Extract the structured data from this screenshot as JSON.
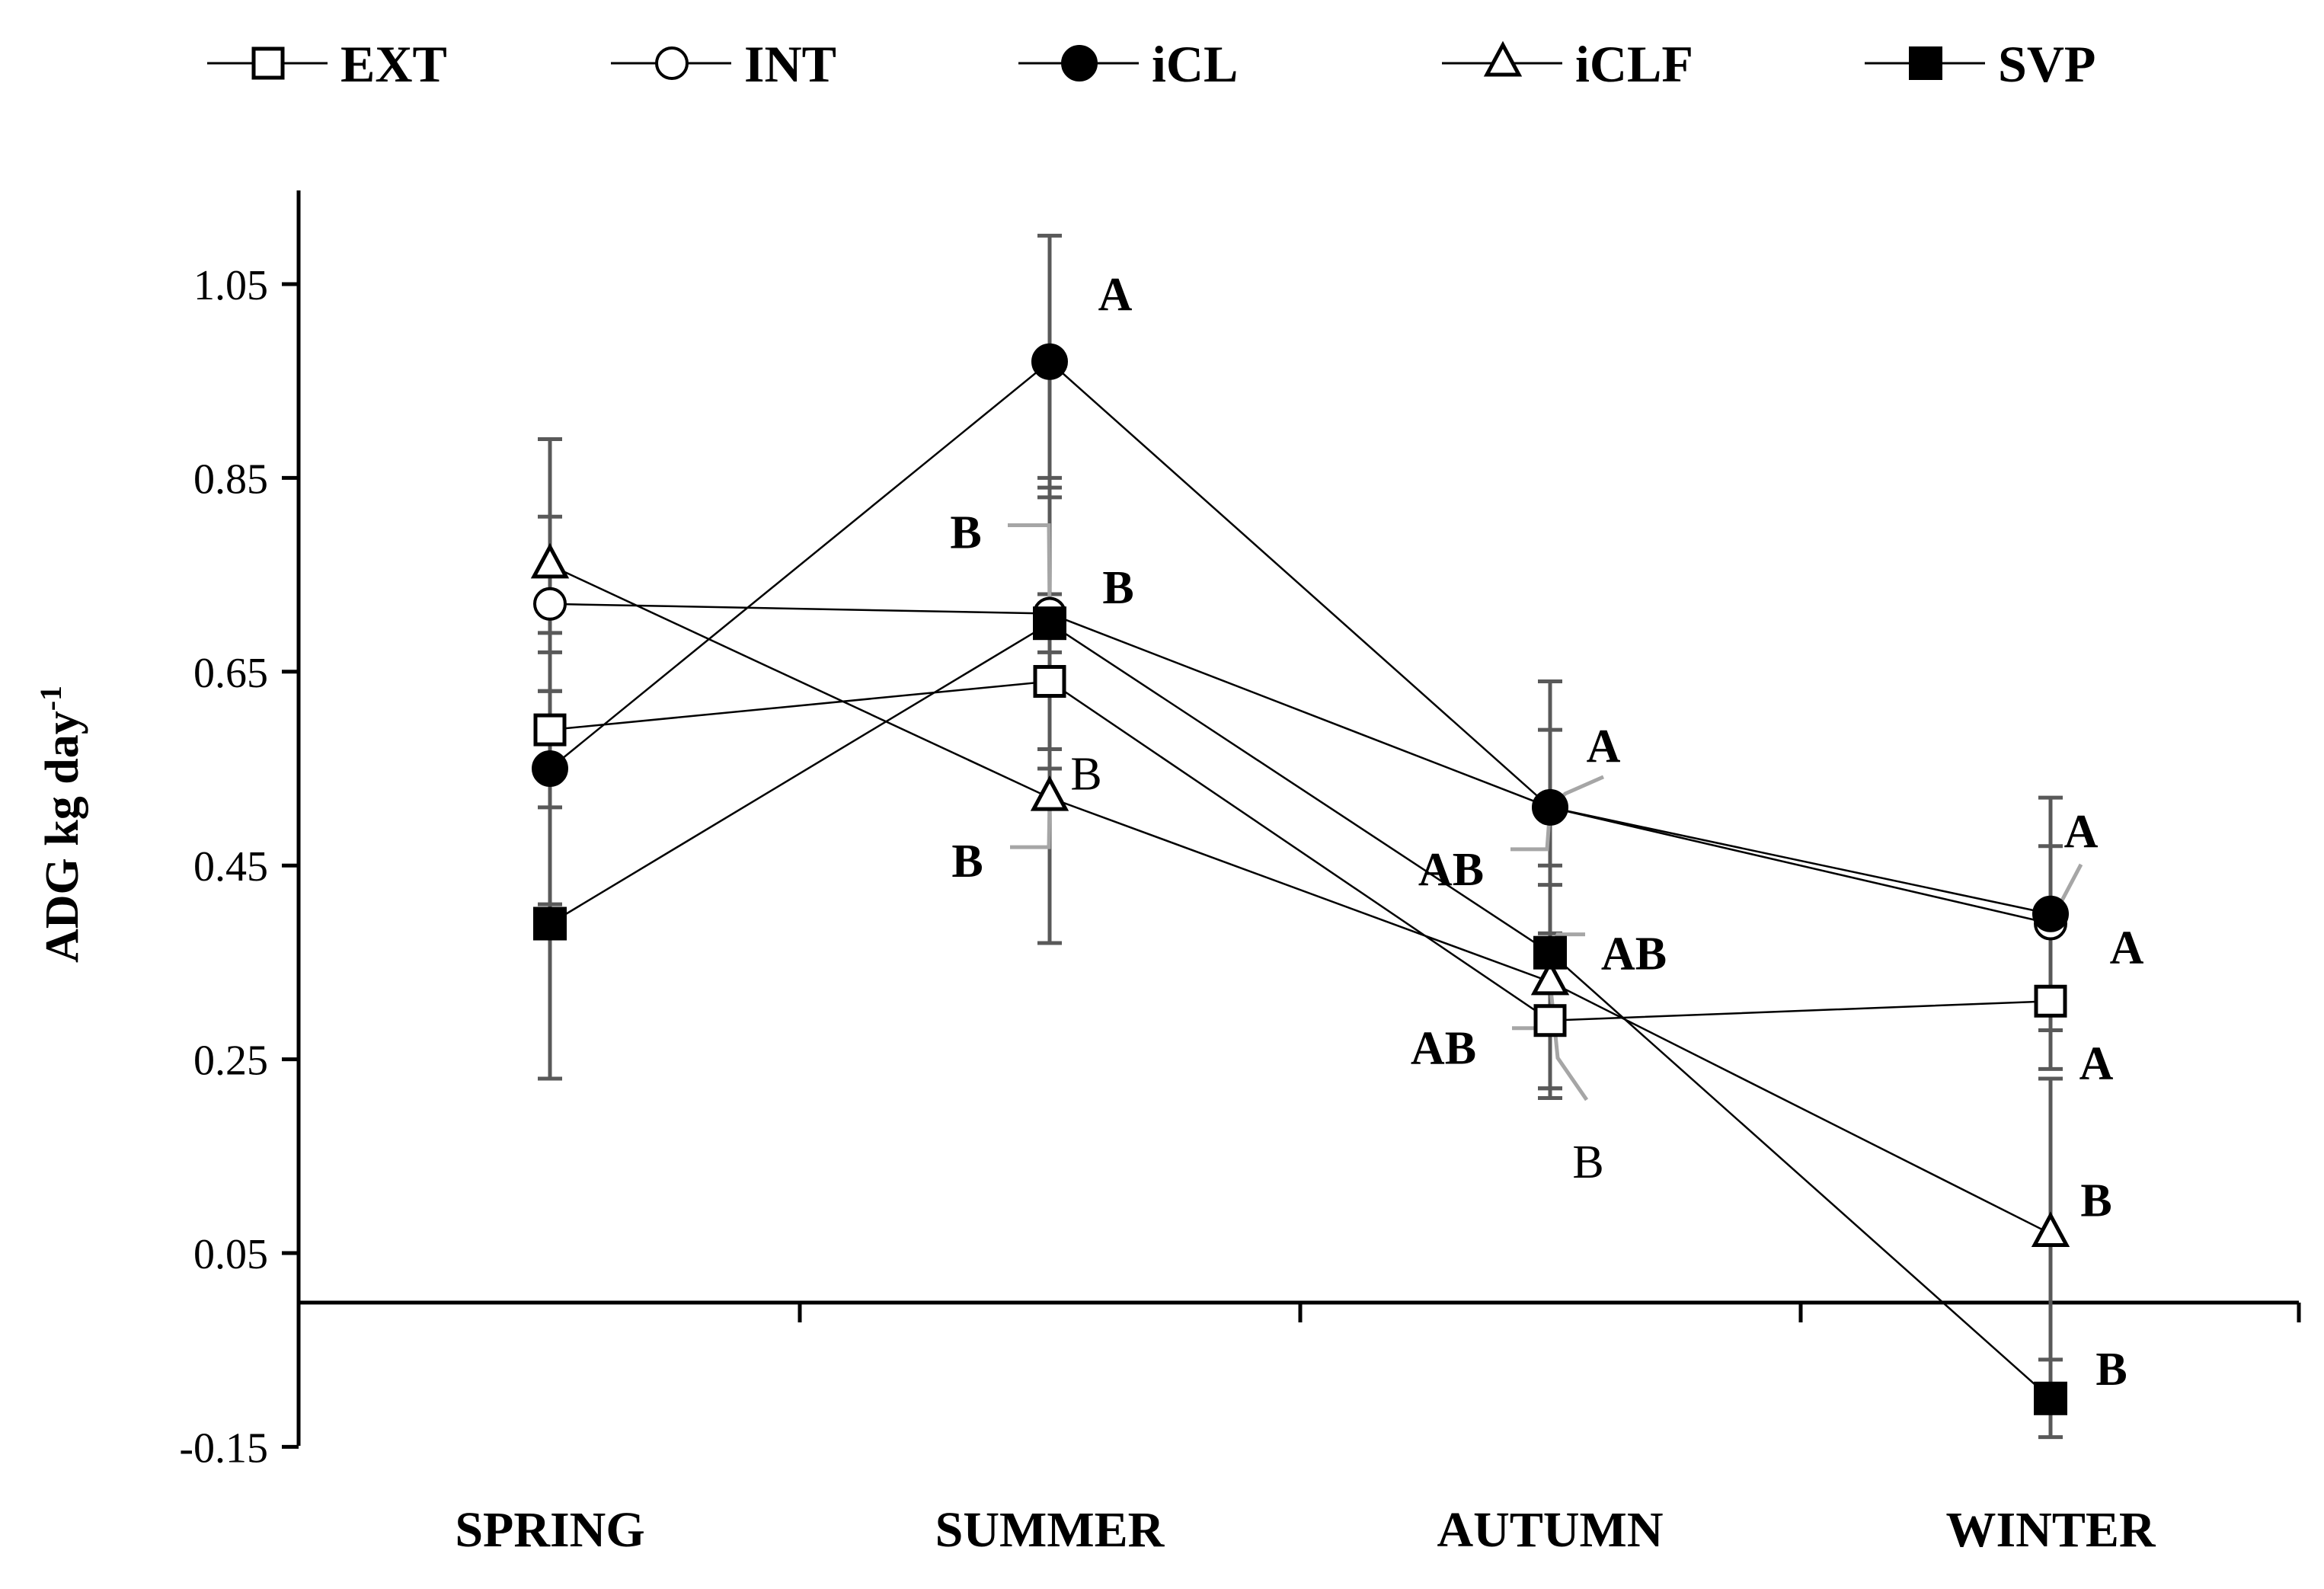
{
  "chart_data": {
    "type": "line",
    "title": "",
    "xlabel": "",
    "ylabel": "ADG kg day",
    "ylabel_superscript": "-1",
    "categories": [
      "SPRING",
      "SUMMER",
      "AUTUMN",
      "WINTER"
    ],
    "ylim": [
      -0.15,
      1.15
    ],
    "yticks": [
      -0.15,
      0.05,
      0.25,
      0.45,
      0.65,
      0.85,
      1.05
    ],
    "ytick_labels": [
      "-0.15",
      "0.05",
      "0.25",
      "0.45",
      "0.65",
      "0.85",
      "1.05"
    ],
    "grid": false,
    "legend_position": "top",
    "series": [
      {
        "name": "EXT",
        "marker": "open-square",
        "values": [
          0.59,
          0.64,
          0.29,
          0.31
        ],
        "errors": [
          0.08,
          0.09,
          0.07,
          0.07
        ]
      },
      {
        "name": "INT",
        "marker": "open-circle",
        "values": [
          0.72,
          0.71,
          0.51,
          0.39
        ],
        "errors": [
          0.09,
          0.14,
          0.08,
          0.08
        ]
      },
      {
        "name": "iCL",
        "marker": "filled-circle",
        "values": [
          0.55,
          0.97,
          0.51,
          0.4
        ],
        "errors": [
          0.14,
          0.13,
          0.13,
          0.12
        ]
      },
      {
        "name": "iCLF",
        "marker": "open-triangle",
        "values": [
          0.76,
          0.52,
          0.33,
          0.07
        ],
        "errors": [
          0.13,
          0.15,
          0.12,
          0.16
        ]
      },
      {
        "name": "SVP",
        "marker": "filled-square",
        "values": [
          0.39,
          0.7,
          0.36,
          -0.1
        ],
        "errors": [
          0.16,
          0.13,
          0.14,
          0.04
        ]
      }
    ],
    "annotations": [
      {
        "text": "A",
        "bold": true,
        "category": "SUMMER",
        "series": "iCL"
      },
      {
        "text": "B",
        "bold": true,
        "category": "SUMMER",
        "series": "INT"
      },
      {
        "text": "B",
        "bold": true,
        "category": "SUMMER",
        "series": "SVP"
      },
      {
        "text": "B",
        "bold": false,
        "category": "SUMMER",
        "series": "EXT"
      },
      {
        "text": "B",
        "bold": true,
        "category": "SUMMER",
        "series": "iCLF"
      },
      {
        "text": "A",
        "bold": true,
        "category": "AUTUMN",
        "series": "iCL"
      },
      {
        "text": "AB",
        "bold": true,
        "category": "AUTUMN",
        "series": "INT"
      },
      {
        "text": "AB",
        "bold": true,
        "category": "AUTUMN",
        "series": "SVP"
      },
      {
        "text": "AB",
        "bold": true,
        "category": "AUTUMN",
        "series": "EXT"
      },
      {
        "text": "B",
        "bold": false,
        "category": "AUTUMN",
        "series": "iCLF"
      },
      {
        "text": "A",
        "bold": true,
        "category": "WINTER",
        "series": "iCL"
      },
      {
        "text": "A",
        "bold": true,
        "category": "WINTER",
        "series": "INT"
      },
      {
        "text": "A",
        "bold": true,
        "category": "WINTER",
        "series": "EXT"
      },
      {
        "text": "B",
        "bold": true,
        "category": "WINTER",
        "series": "iCLF"
      },
      {
        "text": "B",
        "bold": true,
        "category": "WINTER",
        "series": "SVP"
      }
    ]
  },
  "colors": {
    "line": "#000000",
    "error_bar": "#595959",
    "leader_line": "#a6a6a6",
    "background": "#ffffff"
  }
}
